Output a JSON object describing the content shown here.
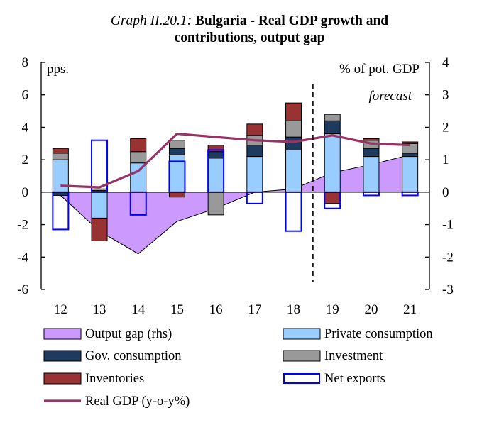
{
  "chart_data": {
    "type": "bar",
    "title_prefix": "Graph II.20.1:",
    "title_line1": "Bulgaria - Real GDP growth and",
    "title_line2": "contributions, output gap",
    "y_left_label": "pps.",
    "y_right_label": "% of pot. GDP",
    "forecast_label": "forecast",
    "forecast_after": "18",
    "ylim_left": [
      -6,
      8
    ],
    "ylim_right": [
      -3,
      4
    ],
    "yticks_left": [
      "8",
      "6",
      "4",
      "2",
      "0",
      "-2",
      "-4",
      "-6"
    ],
    "yticks_right": [
      "4",
      "3",
      "2",
      "1",
      "0",
      "-1",
      "-2",
      "-3"
    ],
    "categories": [
      "12",
      "13",
      "14",
      "15",
      "16",
      "17",
      "18",
      "19",
      "20",
      "21"
    ],
    "series": [
      {
        "name": "Output gap (rhs)",
        "kind": "area",
        "axis": "right",
        "color": "#cc99ff",
        "values": [
          -0.1,
          -1.2,
          -1.9,
          -0.9,
          -0.5,
          0.0,
          0.1,
          0.6,
          0.85,
          1.15
        ]
      },
      {
        "name": "Private consumption",
        "kind": "bar",
        "color": "#99ccff",
        "values": [
          2.0,
          -1.6,
          1.8,
          2.3,
          2.1,
          2.2,
          2.6,
          3.6,
          2.2,
          2.2
        ]
      },
      {
        "name": "Gov. consumption",
        "kind": "bar",
        "color": "#1f3a5f",
        "values": [
          -0.2,
          0.1,
          0.0,
          0.4,
          0.4,
          0.7,
          0.8,
          0.8,
          0.5,
          0.2
        ]
      },
      {
        "name": "Investment",
        "kind": "bar",
        "color": "#999999",
        "values": [
          0.4,
          0.1,
          0.7,
          0.5,
          -1.4,
          0.6,
          1.0,
          0.4,
          0.5,
          0.6
        ]
      },
      {
        "name": "Inventories",
        "kind": "bar",
        "color": "#993333",
        "values": [
          0.3,
          -1.4,
          0.8,
          -0.3,
          0.4,
          0.7,
          1.1,
          -0.7,
          0.1,
          0.1
        ]
      },
      {
        "name": "Net exports",
        "kind": "outline",
        "color": "#0000ff",
        "values": [
          -2.3,
          3.2,
          -1.4,
          1.9,
          2.6,
          -0.7,
          -2.4,
          -1.0,
          -0.2,
          -0.2
        ]
      },
      {
        "name": "Real GDP (y-o-y%)",
        "kind": "line",
        "color": "#993366",
        "values": [
          0.4,
          0.3,
          1.3,
          3.6,
          3.4,
          3.2,
          3.1,
          3.5,
          3.0,
          2.9
        ]
      }
    ]
  }
}
